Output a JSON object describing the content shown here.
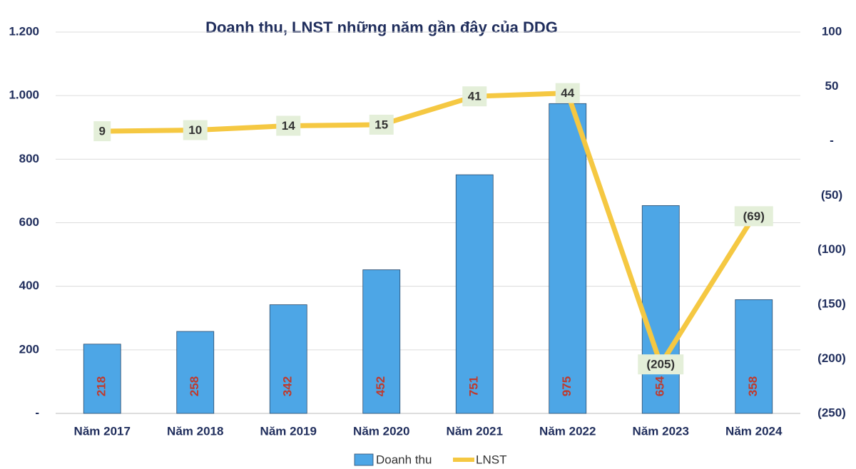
{
  "chart_data": {
    "type": "bar-line",
    "title": "Doanh thu, LNST những năm gần đây của DDG",
    "categories": [
      "Năm 2017",
      "Năm 2018",
      "Năm 2019",
      "Năm 2020",
      "Năm 2021",
      "Năm 2022",
      "Năm 2023",
      "Năm 2024"
    ],
    "series": [
      {
        "name": "Doanh thu",
        "type": "bar",
        "color": "#4da6e6",
        "values": [
          218,
          258,
          342,
          452,
          751,
          975,
          654,
          358
        ]
      },
      {
        "name": "LNST",
        "type": "line",
        "axis": "y2",
        "color": "#f5c842",
        "values": [
          9,
          10,
          14,
          15,
          41,
          44,
          -205,
          -69
        ],
        "value_labels": [
          "9",
          "10",
          "14",
          "15",
          "41",
          "44",
          "(205)",
          "(69)"
        ]
      }
    ],
    "ylim": [
      0,
      1200
    ],
    "yticks": [
      {
        "value": 0,
        "label": "-"
      },
      200,
      400,
      600,
      800,
      {
        "value": 1000,
        "label": "1.000"
      },
      {
        "value": 1200,
        "label": "1.200"
      }
    ],
    "y2lim": [
      -250,
      100
    ],
    "y2ticks": [
      {
        "value": -250,
        "label": "(250)"
      },
      {
        "value": -200,
        "label": "(200)"
      },
      {
        "value": -150,
        "label": "(150)"
      },
      {
        "value": -100,
        "label": "(100)"
      },
      {
        "value": -50,
        "label": "(50)"
      },
      {
        "value": 0,
        "label": "-"
      },
      50,
      100
    ],
    "grid": true
  }
}
